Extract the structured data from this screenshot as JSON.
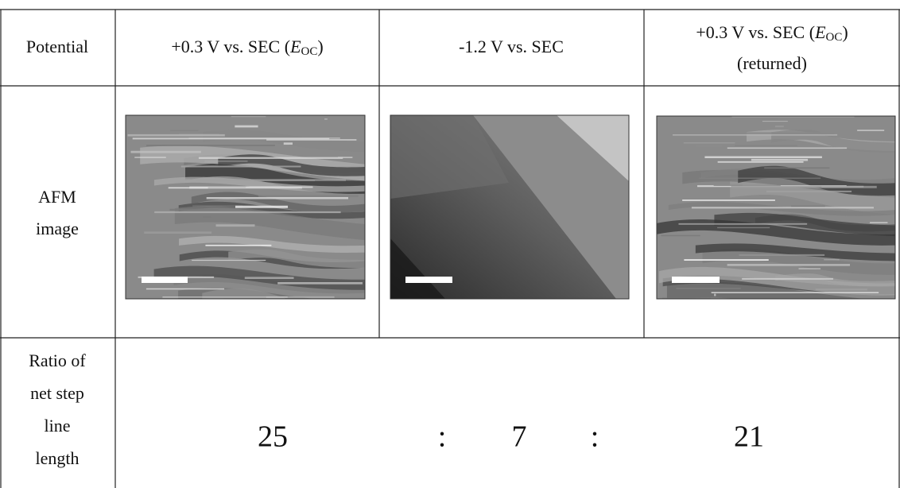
{
  "table": {
    "header": {
      "label": "Potential",
      "columns": [
        {
          "before": "+0.3 V vs. SEC (",
          "symbol": "E",
          "subscript": "OC",
          "after": ")"
        },
        {
          "text": "-1.2 V vs. SEC"
        },
        {
          "before": "+0.3 V vs. SEC (",
          "symbol": "E",
          "subscript": "OC",
          "after": ")",
          "note": "(returned)"
        }
      ]
    },
    "image_row": {
      "label": [
        "AFM",
        "image"
      ]
    },
    "ratio_row": {
      "label": [
        "Ratio of",
        "net step",
        "line",
        "length"
      ],
      "values": [
        25,
        7,
        21
      ],
      "separator": ":"
    }
  }
}
